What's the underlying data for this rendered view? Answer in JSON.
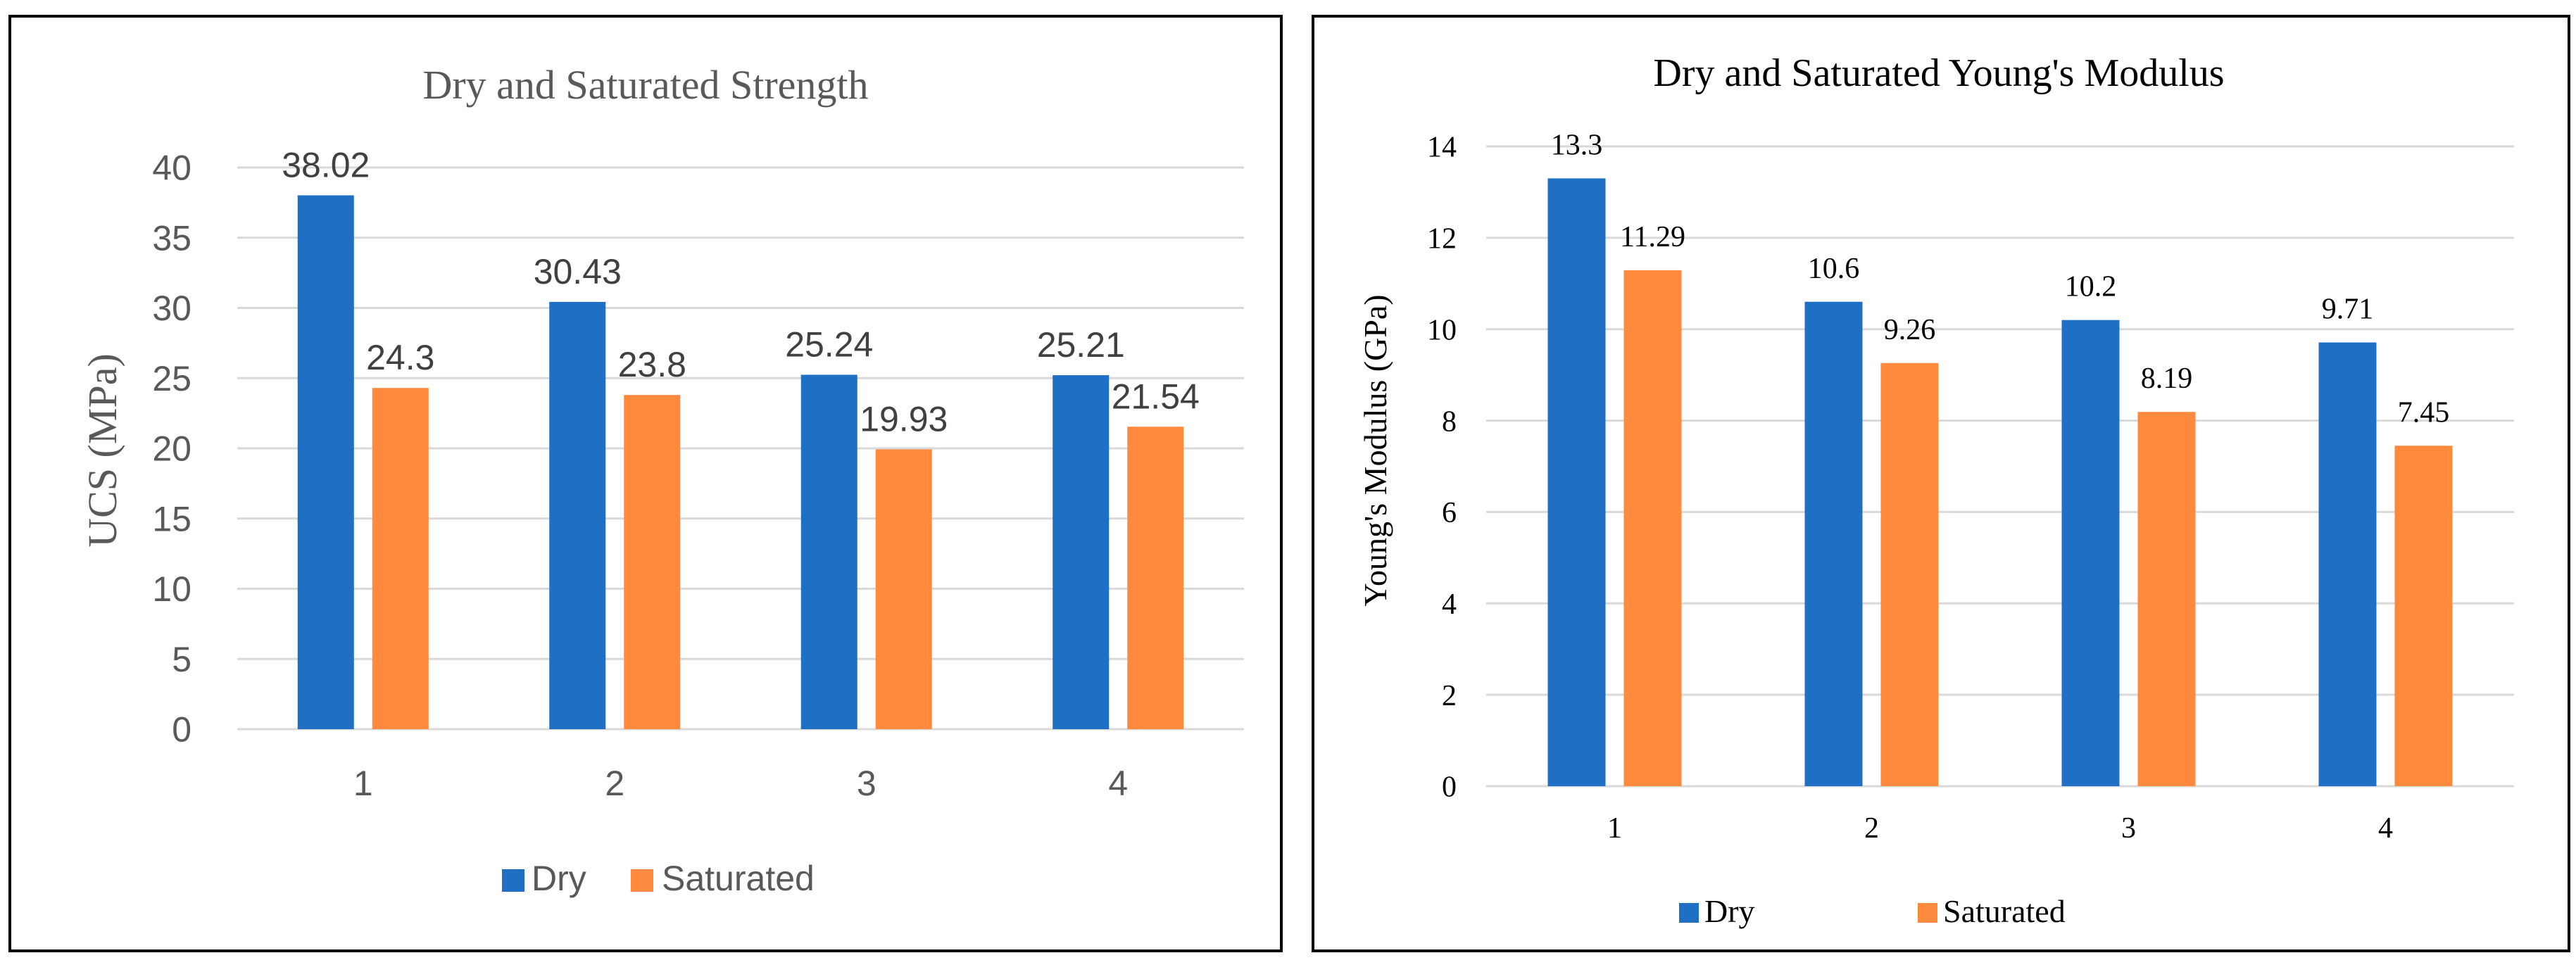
{
  "colors": {
    "dry": "#1f6fc4",
    "saturated": "#ff8a3d",
    "grid": "#d9d9d9",
    "axis_text": "#595959",
    "frame": "#000000"
  },
  "chart_data": [
    {
      "type": "bar",
      "title": "Dry and Saturated Strength",
      "xlabel": "",
      "ylabel": "UCS (MPa)",
      "categories": [
        "1",
        "2",
        "3",
        "4"
      ],
      "ylim": [
        0,
        40
      ],
      "yticks": [
        "0",
        "5",
        "10",
        "15",
        "20",
        "25",
        "30",
        "35",
        "40"
      ],
      "series": [
        {
          "name": "Dry",
          "values": [
            38.02,
            30.43,
            25.24,
            25.21
          ],
          "labels": [
            "38.02",
            "30.43",
            "25.24",
            "25.21"
          ]
        },
        {
          "name": "Saturated",
          "values": [
            24.3,
            23.8,
            19.93,
            21.54
          ],
          "labels": [
            "24.3",
            "23.8",
            "19.93",
            "21.54"
          ]
        }
      ],
      "legend": [
        "Dry",
        "Saturated"
      ],
      "legend_position": "bottom",
      "grid": true
    },
    {
      "type": "bar",
      "title": "Dry and Saturated Young's Modulus",
      "xlabel": "",
      "ylabel": "Young's Modulus (GPa)",
      "categories": [
        "1",
        "2",
        "3",
        "4"
      ],
      "ylim": [
        0,
        14
      ],
      "yticks": [
        "0",
        "2",
        "4",
        "6",
        "8",
        "10",
        "12",
        "14"
      ],
      "series": [
        {
          "name": "Dry",
          "values": [
            13.3,
            10.6,
            10.2,
            9.71
          ],
          "labels": [
            "13.3",
            "10.6",
            "10.2",
            "9.71"
          ]
        },
        {
          "name": "Saturated",
          "values": [
            11.29,
            9.26,
            8.19,
            7.45
          ],
          "labels": [
            "11.29",
            "9.26",
            "8.19",
            "7.45"
          ]
        }
      ],
      "legend": [
        "Dry",
        "Saturated"
      ],
      "legend_position": "bottom",
      "grid": true
    }
  ]
}
